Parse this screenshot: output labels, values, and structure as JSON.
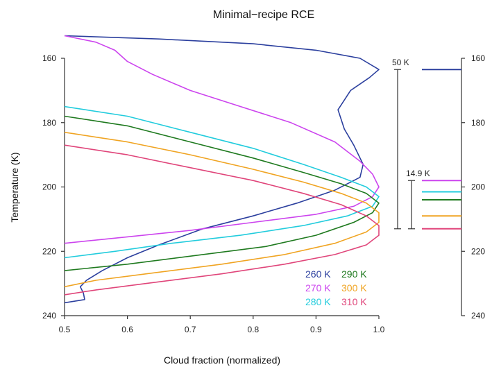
{
  "chart_data": {
    "type": "line",
    "title": "Minimal−recipe RCE",
    "xlabel": "Cloud fraction (normalized)",
    "ylabel": "Temperature (K)",
    "xlim": [
      0.5,
      1.0
    ],
    "ylim": [
      240,
      158
    ],
    "y_inverted": true,
    "xticks": [
      "0.5",
      "0.6",
      "0.7",
      "0.8",
      "0.9",
      "1.0"
    ],
    "yticks": [
      "160",
      "180",
      "200",
      "220",
      "240"
    ],
    "right_axis_ticks": [
      "160",
      "180",
      "200",
      "220",
      "240"
    ],
    "grid": false,
    "legend": [
      {
        "label": "260 K",
        "color": "#2b3f9e"
      },
      {
        "label": "290 K",
        "color": "#1f7a1f"
      },
      {
        "label": "270 K",
        "color": "#cc44ee"
      },
      {
        "label": "300 K",
        "color": "#f0a422"
      },
      {
        "label": "280 K",
        "color": "#22ccdd"
      },
      {
        "label": "310 K",
        "color": "#e0457a"
      }
    ],
    "series": [
      {
        "name": "260 K",
        "color": "#2b3f9e",
        "points": [
          [
            0.5,
            153
          ],
          [
            0.65,
            154
          ],
          [
            0.8,
            155.5
          ],
          [
            0.9,
            157.5
          ],
          [
            0.97,
            160
          ],
          [
            1.0,
            163.5
          ],
          [
            0.985,
            166
          ],
          [
            0.955,
            170
          ],
          [
            0.935,
            176
          ],
          [
            0.945,
            182
          ],
          [
            0.96,
            187
          ],
          [
            0.975,
            193
          ],
          [
            0.97,
            197
          ],
          [
            0.93,
            201
          ],
          [
            0.87,
            205
          ],
          [
            0.8,
            209
          ],
          [
            0.72,
            213
          ],
          [
            0.65,
            218
          ],
          [
            0.6,
            222
          ],
          [
            0.56,
            226
          ],
          [
            0.535,
            229
          ],
          [
            0.525,
            231
          ],
          [
            0.53,
            233
          ],
          [
            0.532,
            235
          ],
          [
            0.5,
            236
          ]
        ]
      },
      {
        "name": "270 K",
        "color": "#cc44ee",
        "points": [
          [
            0.5,
            153
          ],
          [
            0.55,
            155
          ],
          [
            0.58,
            157.5
          ],
          [
            0.6,
            161
          ],
          [
            0.64,
            165
          ],
          [
            0.7,
            170
          ],
          [
            0.78,
            175
          ],
          [
            0.86,
            180
          ],
          [
            0.93,
            186
          ],
          [
            0.97,
            192
          ],
          [
            0.99,
            196
          ],
          [
            1.0,
            200
          ],
          [
            0.99,
            203
          ],
          [
            0.96,
            206
          ],
          [
            0.9,
            208.5
          ],
          [
            0.8,
            211
          ],
          [
            0.7,
            213.5
          ],
          [
            0.6,
            215.5
          ],
          [
            0.5,
            217.5
          ]
        ]
      },
      {
        "name": "280 K",
        "color": "#22ccdd",
        "points": [
          [
            0.5,
            175
          ],
          [
            0.6,
            178
          ],
          [
            0.7,
            183
          ],
          [
            0.8,
            188
          ],
          [
            0.88,
            193
          ],
          [
            0.94,
            197
          ],
          [
            0.98,
            200
          ],
          [
            1.0,
            203
          ],
          [
            0.99,
            206
          ],
          [
            0.95,
            209
          ],
          [
            0.88,
            212
          ],
          [
            0.78,
            215
          ],
          [
            0.67,
            217.5
          ],
          [
            0.58,
            220
          ],
          [
            0.5,
            222
          ]
        ]
      },
      {
        "name": "290 K",
        "color": "#1f7a1f",
        "points": [
          [
            0.5,
            178
          ],
          [
            0.6,
            181
          ],
          [
            0.7,
            186
          ],
          [
            0.8,
            191
          ],
          [
            0.88,
            195.5
          ],
          [
            0.94,
            199
          ],
          [
            0.98,
            202
          ],
          [
            1.0,
            205
          ],
          [
            0.99,
            208
          ],
          [
            0.96,
            211
          ],
          [
            0.9,
            215
          ],
          [
            0.82,
            218.5
          ],
          [
            0.72,
            221
          ],
          [
            0.6,
            224
          ],
          [
            0.5,
            226
          ]
        ]
      },
      {
        "name": "300 K",
        "color": "#f0a422",
        "points": [
          [
            0.5,
            183
          ],
          [
            0.6,
            186
          ],
          [
            0.7,
            190
          ],
          [
            0.8,
            194.5
          ],
          [
            0.88,
            198.5
          ],
          [
            0.94,
            202
          ],
          [
            0.98,
            205
          ],
          [
            1.0,
            208
          ],
          [
            1.0,
            211
          ],
          [
            0.98,
            214
          ],
          [
            0.93,
            217.5
          ],
          [
            0.85,
            221
          ],
          [
            0.75,
            224
          ],
          [
            0.63,
            227
          ],
          [
            0.55,
            229
          ],
          [
            0.5,
            231
          ]
        ]
      },
      {
        "name": "310 K",
        "color": "#e0457a",
        "points": [
          [
            0.5,
            187
          ],
          [
            0.6,
            190
          ],
          [
            0.7,
            194
          ],
          [
            0.8,
            198
          ],
          [
            0.88,
            202
          ],
          [
            0.94,
            205.5
          ],
          [
            0.98,
            209
          ],
          [
            1.0,
            212
          ],
          [
            1.0,
            215
          ],
          [
            0.98,
            218
          ],
          [
            0.93,
            221
          ],
          [
            0.85,
            224
          ],
          [
            0.75,
            227
          ],
          [
            0.63,
            230
          ],
          [
            0.55,
            232
          ],
          [
            0.5,
            233.5
          ]
        ]
      }
    ],
    "right_panel": {
      "markers": [
        {
          "series": "260 K",
          "temperature": 163.5
        },
        {
          "series": "270 K",
          "temperature": 198
        },
        {
          "series": "280 K",
          "temperature": 201.5
        },
        {
          "series": "290 K",
          "temperature": 204
        },
        {
          "series": "300 K",
          "temperature": 209
        },
        {
          "series": "310 K",
          "temperature": 213
        }
      ],
      "brackets": [
        {
          "label": "50 K",
          "from": 163.5,
          "to": 213
        },
        {
          "label": "14.9 K",
          "from": 198,
          "to": 213
        }
      ]
    }
  }
}
